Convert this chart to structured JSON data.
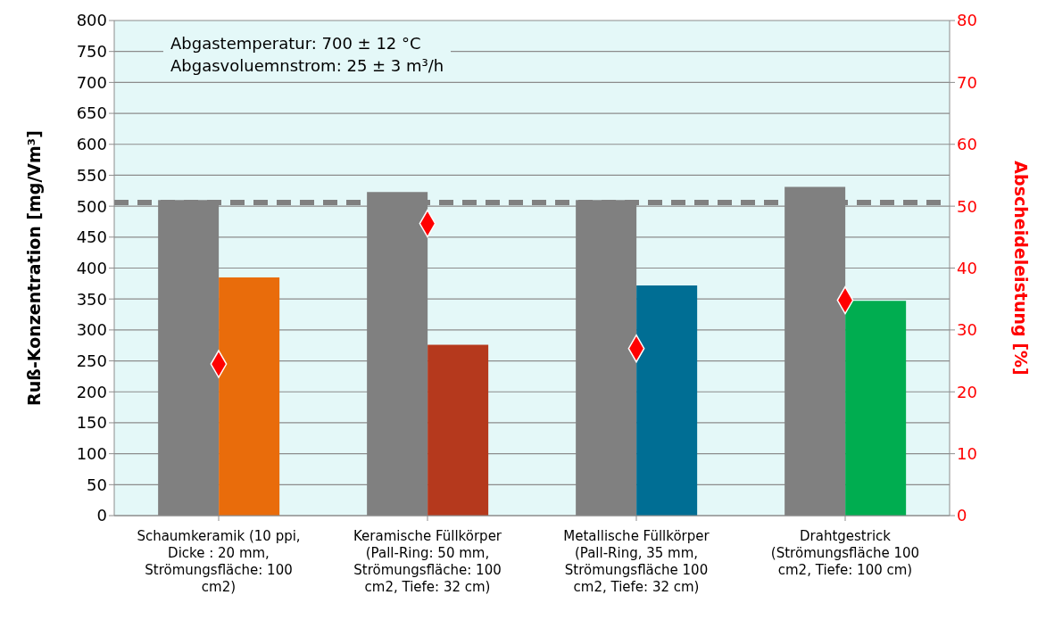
{
  "chart_data": {
    "type": "bar",
    "ylabel": "Ruß-Konzentration [mg/Vm³]",
    "y2label": "Abscheideleistung [%]",
    "categories": [
      "Schaumkeramik (10 ppi, Dicke : 20 mm, Strömungsfläche: 100 cm2)",
      "Keramische Füllkörper (Pall-Ring: 50 mm, Strömungsfläche: 100 cm2, Tiefe: 32 cm)",
      "Metallische Füllkörper (Pall-Ring, 35 mm, Strömungsfläche 100 cm2, Tiefe: 32 cm)",
      "Drahtgestrick (Strömungsfläche 100 cm2, Tiefe: 100 cm)"
    ],
    "series": [
      {
        "color": "#808080",
        "values": [
          510,
          523,
          510,
          531
        ]
      },
      {
        "colors": [
          "#e96c0b",
          "#b5391d",
          "#006e94",
          "#00ad50"
        ],
        "values": [
          385,
          276,
          372,
          347
        ]
      },
      {
        "type": "scatter",
        "axis": "y2",
        "color": "#ff0000",
        "marker": "diamond",
        "values": [
          24.5,
          47.2,
          27,
          34.8
        ]
      }
    ],
    "ylim": [
      0,
      800
    ],
    "yticks": [
      0,
      50,
      100,
      150,
      200,
      250,
      300,
      350,
      400,
      450,
      500,
      550,
      600,
      650,
      700,
      750,
      800
    ],
    "y2lim": [
      0,
      80
    ],
    "y2ticks": [
      0,
      10,
      20,
      30,
      40,
      50,
      60,
      70,
      80
    ],
    "ref_lines": [
      {
        "axis": "y",
        "value": 506,
        "color": "#808080",
        "line_style": "dashed"
      }
    ],
    "annotations": [
      "Abgastemperatur: 700  ± 12 °C",
      "Abgasvoluemnstrom: 25 ± 3 m³/h"
    ],
    "grid": "y",
    "legend": false
  }
}
